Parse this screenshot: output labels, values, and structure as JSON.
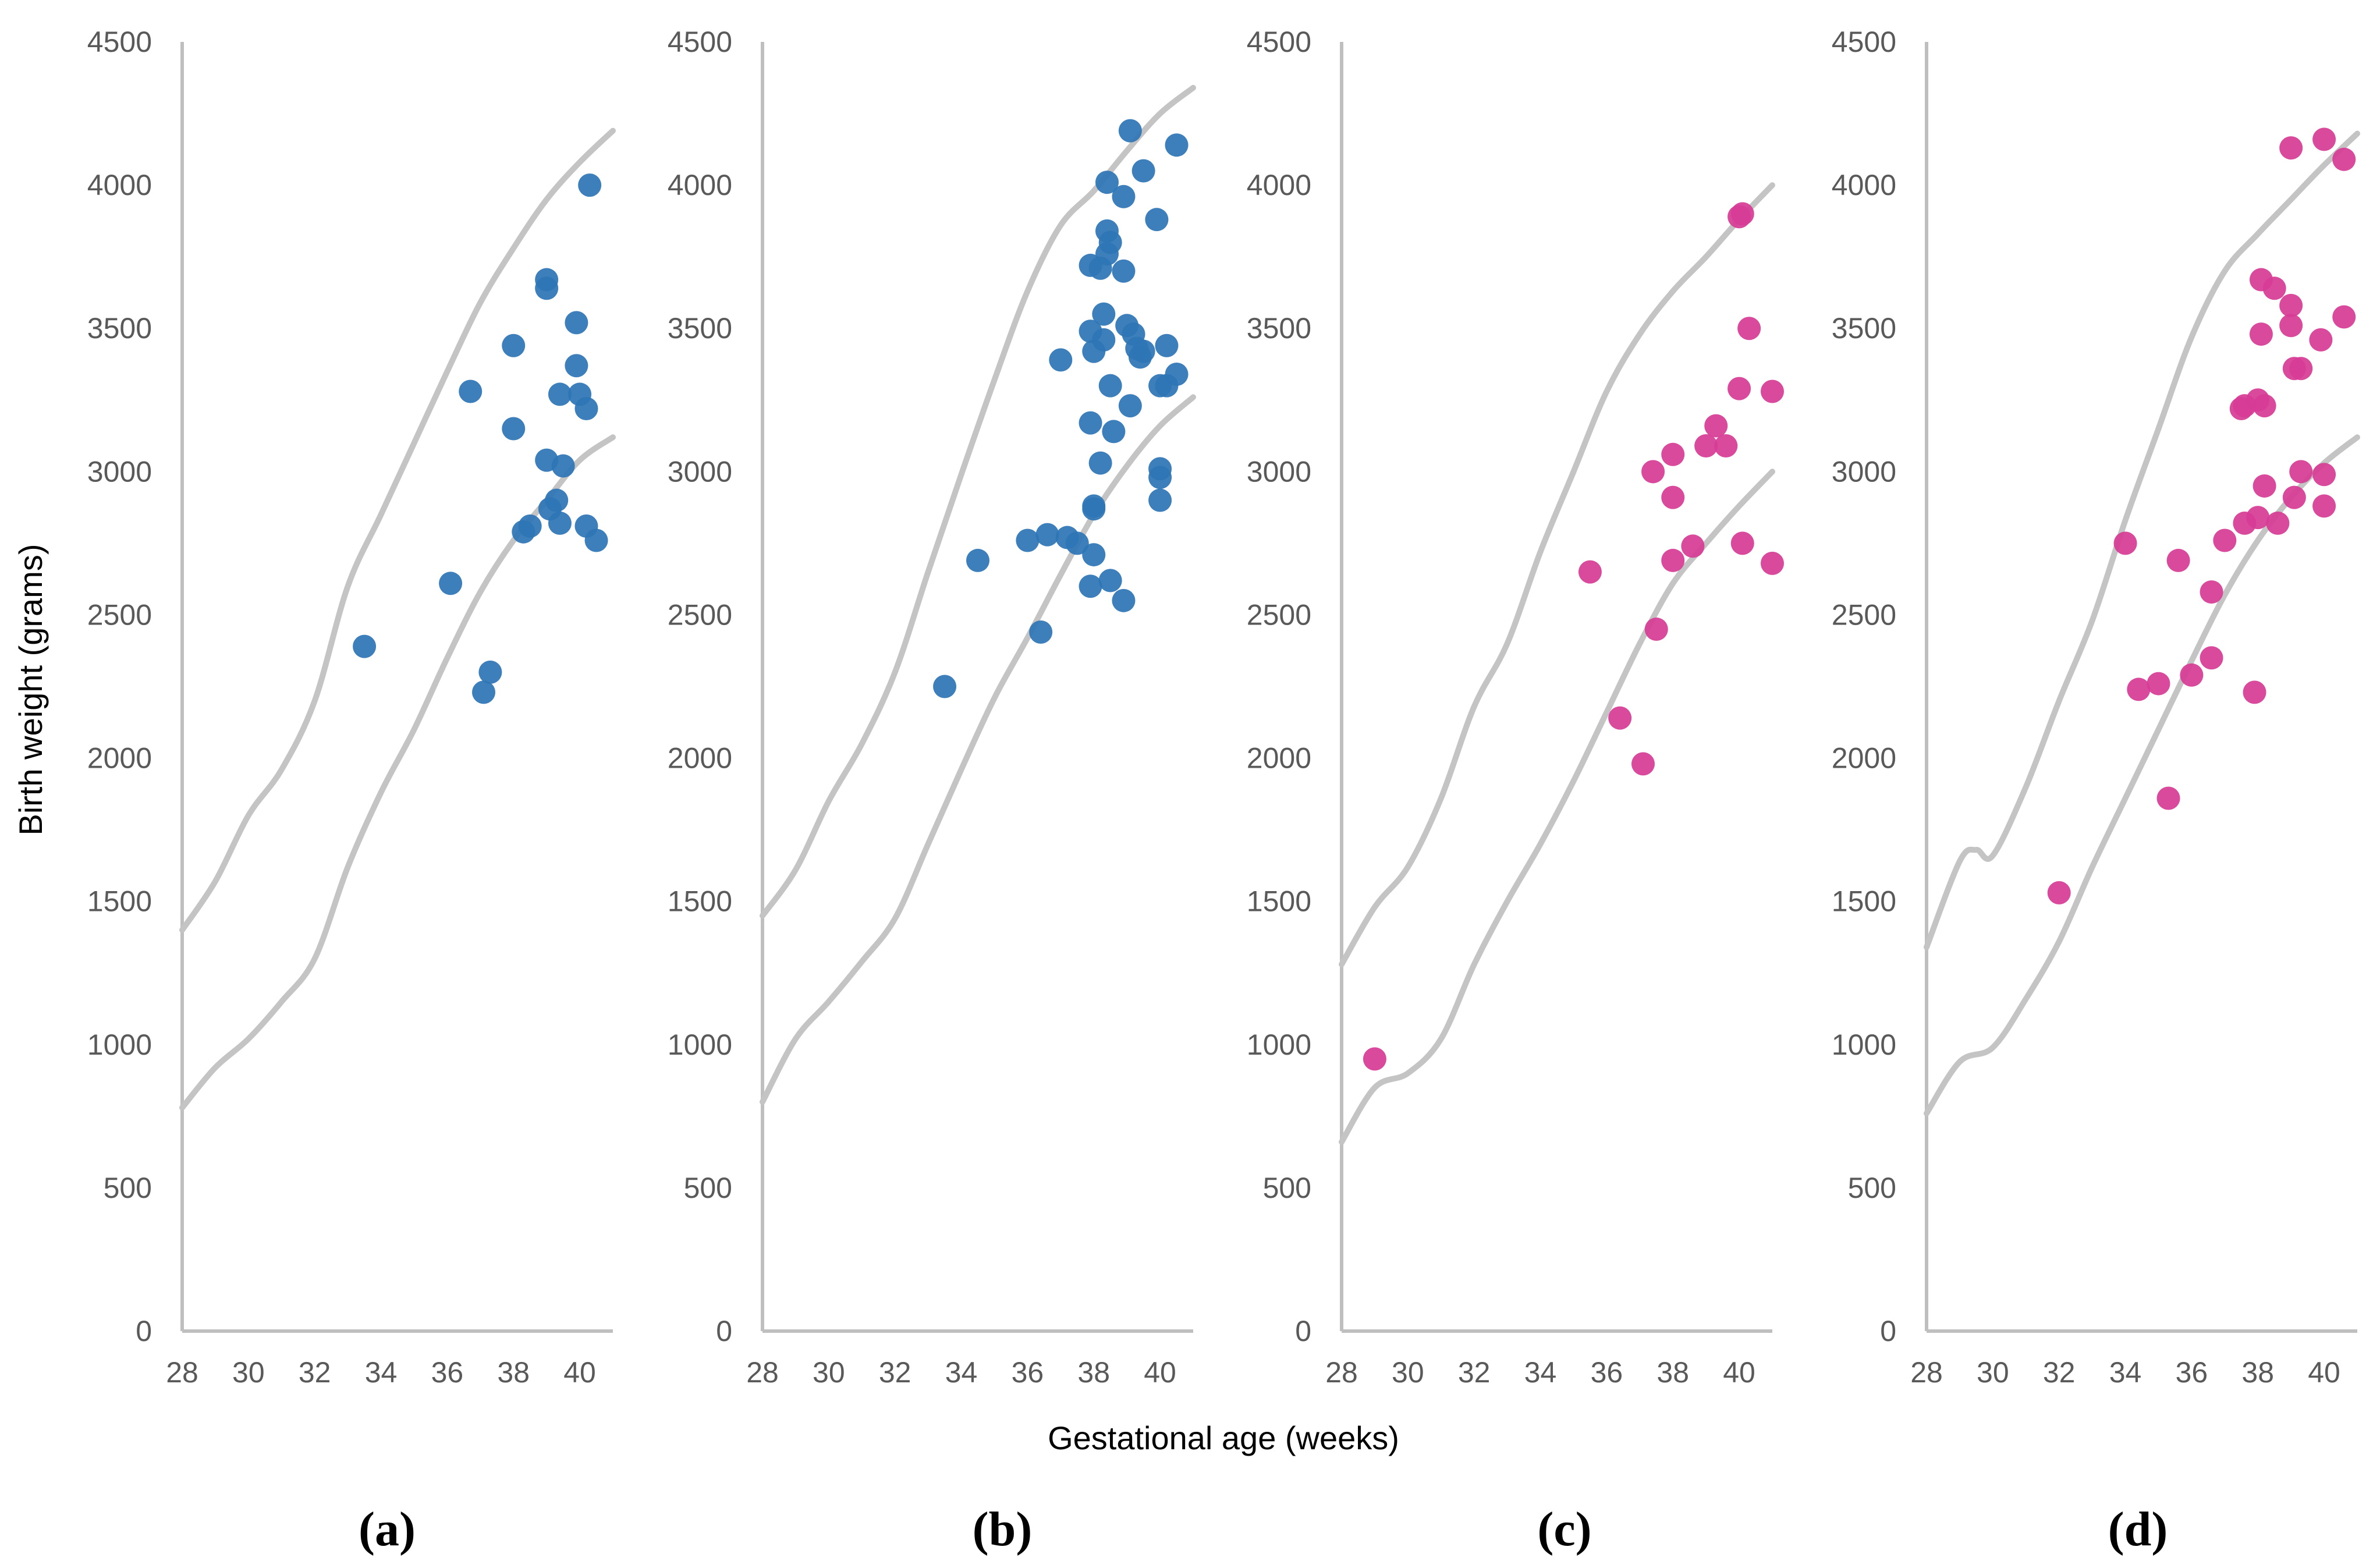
{
  "colors": {
    "blue": "#2e75b6",
    "pink": "#d63c96",
    "curve": "#c4c4c4",
    "axis": "#bfbfbf",
    "tick_text": "#595959"
  },
  "shared": {
    "ylabel": "Birth weight (grams)",
    "xlabel": "Gestational age (weeks)"
  },
  "chart_data": [
    {
      "type": "scatter",
      "label": "(a)",
      "color": "blue",
      "xlim": [
        28,
        41
      ],
      "ylim": [
        0,
        4500
      ],
      "x_ticks": [
        "28",
        "30",
        "32",
        "34",
        "36",
        "38",
        "40"
      ],
      "y_ticks": [
        "0",
        "500",
        "1000",
        "1500",
        "2000",
        "2500",
        "3000",
        "3500",
        "4000",
        "4500"
      ],
      "points": [
        [
          33.5,
          2390
        ],
        [
          36.1,
          2610
        ],
        [
          36.7,
          3280
        ],
        [
          37.1,
          2230
        ],
        [
          37.3,
          2300
        ],
        [
          38.0,
          3440
        ],
        [
          38.0,
          3150
        ],
        [
          38.3,
          2790
        ],
        [
          38.5,
          2810
        ],
        [
          39.0,
          3670
        ],
        [
          39.0,
          3640
        ],
        [
          39.0,
          3040
        ],
        [
          39.1,
          2870
        ],
        [
          39.3,
          2900
        ],
        [
          39.4,
          3270
        ],
        [
          39.4,
          2820
        ],
        [
          39.5,
          3020
        ],
        [
          39.9,
          3520
        ],
        [
          39.9,
          3370
        ],
        [
          40.0,
          3270
        ],
        [
          40.2,
          3220
        ],
        [
          40.2,
          2810
        ],
        [
          40.3,
          4000
        ],
        [
          40.5,
          2760
        ]
      ],
      "upper_curve": [
        [
          28,
          1400
        ],
        [
          29,
          1570
        ],
        [
          30,
          1800
        ],
        [
          31,
          1960
        ],
        [
          32,
          2200
        ],
        [
          33,
          2600
        ],
        [
          34,
          2850
        ],
        [
          35,
          3100
        ],
        [
          36,
          3350
        ],
        [
          37,
          3590
        ],
        [
          38,
          3780
        ],
        [
          39,
          3950
        ],
        [
          40,
          4080
        ],
        [
          41,
          4190
        ]
      ],
      "lower_curve": [
        [
          28,
          780
        ],
        [
          29,
          920
        ],
        [
          30,
          1020
        ],
        [
          31,
          1150
        ],
        [
          32,
          1300
        ],
        [
          33,
          1620
        ],
        [
          34,
          1880
        ],
        [
          35,
          2100
        ],
        [
          36,
          2350
        ],
        [
          37,
          2580
        ],
        [
          38,
          2760
        ],
        [
          39,
          2900
        ],
        [
          40,
          3040
        ],
        [
          41,
          3120
        ]
      ]
    },
    {
      "type": "scatter",
      "label": "(b)",
      "color": "blue",
      "xlim": [
        28,
        41
      ],
      "ylim": [
        0,
        4500
      ],
      "x_ticks": [
        "28",
        "30",
        "32",
        "34",
        "36",
        "38",
        "40"
      ],
      "y_ticks": [
        "0",
        "500",
        "1000",
        "1500",
        "2000",
        "2500",
        "3000",
        "3500",
        "4000",
        "4500"
      ],
      "points": [
        [
          33.5,
          2250
        ],
        [
          34.5,
          2690
        ],
        [
          36.0,
          2760
        ],
        [
          36.4,
          2440
        ],
        [
          36.6,
          2780
        ],
        [
          37.0,
          3390
        ],
        [
          37.2,
          2770
        ],
        [
          37.5,
          2750
        ],
        [
          37.9,
          3720
        ],
        [
          37.9,
          3490
        ],
        [
          37.9,
          3170
        ],
        [
          37.9,
          2600
        ],
        [
          38.0,
          3420
        ],
        [
          38.0,
          2880
        ],
        [
          38.0,
          2870
        ],
        [
          38.0,
          2710
        ],
        [
          38.2,
          3710
        ],
        [
          38.2,
          3030
        ],
        [
          38.3,
          3550
        ],
        [
          38.3,
          3460
        ],
        [
          38.4,
          4010
        ],
        [
          38.4,
          3840
        ],
        [
          38.4,
          3760
        ],
        [
          38.5,
          3800
        ],
        [
          38.5,
          3300
        ],
        [
          38.5,
          2620
        ],
        [
          38.6,
          3140
        ],
        [
          38.9,
          3960
        ],
        [
          38.9,
          3700
        ],
        [
          38.9,
          2550
        ],
        [
          39.0,
          3510
        ],
        [
          39.1,
          4190
        ],
        [
          39.1,
          3230
        ],
        [
          39.2,
          3480
        ],
        [
          39.3,
          3430
        ],
        [
          39.4,
          3400
        ],
        [
          39.5,
          4050
        ],
        [
          39.5,
          3420
        ],
        [
          39.9,
          3880
        ],
        [
          40.0,
          3300
        ],
        [
          40.0,
          3010
        ],
        [
          40.0,
          2980
        ],
        [
          40.0,
          2900
        ],
        [
          40.2,
          3440
        ],
        [
          40.2,
          3300
        ],
        [
          40.5,
          4140
        ],
        [
          40.5,
          3340
        ]
      ],
      "upper_curve": [
        [
          28,
          1450
        ],
        [
          29,
          1610
        ],
        [
          30,
          1850
        ],
        [
          31,
          2050
        ],
        [
          32,
          2300
        ],
        [
          33,
          2650
        ],
        [
          34,
          2990
        ],
        [
          35,
          3320
        ],
        [
          36,
          3630
        ],
        [
          37,
          3860
        ],
        [
          38,
          3980
        ],
        [
          39,
          4120
        ],
        [
          40,
          4250
        ],
        [
          41,
          4340
        ]
      ],
      "lower_curve": [
        [
          28,
          800
        ],
        [
          29,
          1020
        ],
        [
          30,
          1150
        ],
        [
          31,
          1290
        ],
        [
          32,
          1440
        ],
        [
          33,
          1700
        ],
        [
          34,
          1960
        ],
        [
          35,
          2210
        ],
        [
          36,
          2420
        ],
        [
          37,
          2640
        ],
        [
          38,
          2850
        ],
        [
          39,
          3020
        ],
        [
          40,
          3160
        ],
        [
          41,
          3260
        ]
      ]
    },
    {
      "type": "scatter",
      "label": "(c)",
      "color": "pink",
      "xlim": [
        28,
        41
      ],
      "ylim": [
        0,
        4500
      ],
      "x_ticks": [
        "28",
        "30",
        "32",
        "34",
        "36",
        "38",
        "40"
      ],
      "y_ticks": [
        "0",
        "500",
        "1000",
        "1500",
        "2000",
        "2500",
        "3000",
        "3500",
        "4000",
        "4500"
      ],
      "points": [
        [
          29.0,
          950
        ],
        [
          35.5,
          2650
        ],
        [
          36.4,
          2140
        ],
        [
          37.1,
          1980
        ],
        [
          37.4,
          3000
        ],
        [
          37.5,
          2450
        ],
        [
          38.0,
          3060
        ],
        [
          38.0,
          2910
        ],
        [
          38.0,
          2690
        ],
        [
          38.6,
          2740
        ],
        [
          39.0,
          3090
        ],
        [
          39.3,
          3160
        ],
        [
          39.6,
          3090
        ],
        [
          40.0,
          3290
        ],
        [
          40.0,
          3890
        ],
        [
          40.1,
          3900
        ],
        [
          40.1,
          2750
        ],
        [
          40.3,
          3500
        ],
        [
          41.0,
          3280
        ],
        [
          41.0,
          2680
        ]
      ],
      "upper_curve": [
        [
          28,
          1280
        ],
        [
          29,
          1480
        ],
        [
          30,
          1620
        ],
        [
          31,
          1860
        ],
        [
          32,
          2180
        ],
        [
          33,
          2400
        ],
        [
          34,
          2720
        ],
        [
          35,
          3000
        ],
        [
          36,
          3280
        ],
        [
          37,
          3480
        ],
        [
          38,
          3630
        ],
        [
          39,
          3750
        ],
        [
          40,
          3880
        ],
        [
          41,
          4000
        ]
      ],
      "lower_curve": [
        [
          28,
          660
        ],
        [
          29,
          850
        ],
        [
          30,
          900
        ],
        [
          31,
          1020
        ],
        [
          32,
          1280
        ],
        [
          33,
          1500
        ],
        [
          34,
          1700
        ],
        [
          35,
          1920
        ],
        [
          36,
          2160
        ],
        [
          37,
          2400
        ],
        [
          38,
          2610
        ],
        [
          39,
          2750
        ],
        [
          40,
          2880
        ],
        [
          41,
          3000
        ]
      ]
    },
    {
      "type": "scatter",
      "label": "(d)",
      "color": "pink",
      "xlim": [
        28,
        41
      ],
      "ylim": [
        0,
        4500
      ],
      "x_ticks": [
        "28",
        "30",
        "32",
        "34",
        "36",
        "38",
        "40"
      ],
      "y_ticks": [
        "0",
        "500",
        "1000",
        "1500",
        "2000",
        "2500",
        "3000",
        "3500",
        "4000",
        "4500"
      ],
      "points": [
        [
          32.0,
          1530
        ],
        [
          34.0,
          2750
        ],
        [
          34.4,
          2240
        ],
        [
          35.0,
          2260
        ],
        [
          35.3,
          1860
        ],
        [
          35.6,
          2690
        ],
        [
          36.0,
          2290
        ],
        [
          36.6,
          2350
        ],
        [
          36.6,
          2580
        ],
        [
          37.0,
          2760
        ],
        [
          37.5,
          3220
        ],
        [
          37.6,
          3230
        ],
        [
          37.6,
          2820
        ],
        [
          37.9,
          2230
        ],
        [
          38.0,
          3250
        ],
        [
          38.0,
          2840
        ],
        [
          38.1,
          3670
        ],
        [
          38.1,
          3480
        ],
        [
          38.2,
          3230
        ],
        [
          38.2,
          2950
        ],
        [
          38.5,
          3640
        ],
        [
          38.6,
          2820
        ],
        [
          39.0,
          4130
        ],
        [
          39.0,
          3580
        ],
        [
          39.0,
          3510
        ],
        [
          39.1,
          3360
        ],
        [
          39.1,
          2910
        ],
        [
          39.3,
          3000
        ],
        [
          39.3,
          3360
        ],
        [
          39.9,
          3460
        ],
        [
          40.0,
          4160
        ],
        [
          40.0,
          2990
        ],
        [
          40.0,
          2880
        ],
        [
          40.6,
          4090
        ],
        [
          40.6,
          3540
        ]
      ],
      "upper_curve": [
        [
          28,
          1340
        ],
        [
          29,
          1640
        ],
        [
          29.5,
          1680
        ],
        [
          30,
          1660
        ],
        [
          31,
          1900
        ],
        [
          32,
          2200
        ],
        [
          33,
          2480
        ],
        [
          34,
          2830
        ],
        [
          35,
          3150
        ],
        [
          36,
          3470
        ],
        [
          37,
          3700
        ],
        [
          38,
          3830
        ],
        [
          39,
          3950
        ],
        [
          40,
          4070
        ],
        [
          41,
          4180
        ]
      ],
      "lower_curve": [
        [
          28,
          760
        ],
        [
          29,
          940
        ],
        [
          30,
          990
        ],
        [
          31,
          1160
        ],
        [
          32,
          1360
        ],
        [
          33,
          1620
        ],
        [
          34,
          1860
        ],
        [
          35,
          2100
        ],
        [
          36,
          2340
        ],
        [
          37,
          2570
        ],
        [
          38,
          2760
        ],
        [
          39,
          2910
        ],
        [
          40,
          3030
        ],
        [
          41,
          3120
        ]
      ]
    }
  ]
}
